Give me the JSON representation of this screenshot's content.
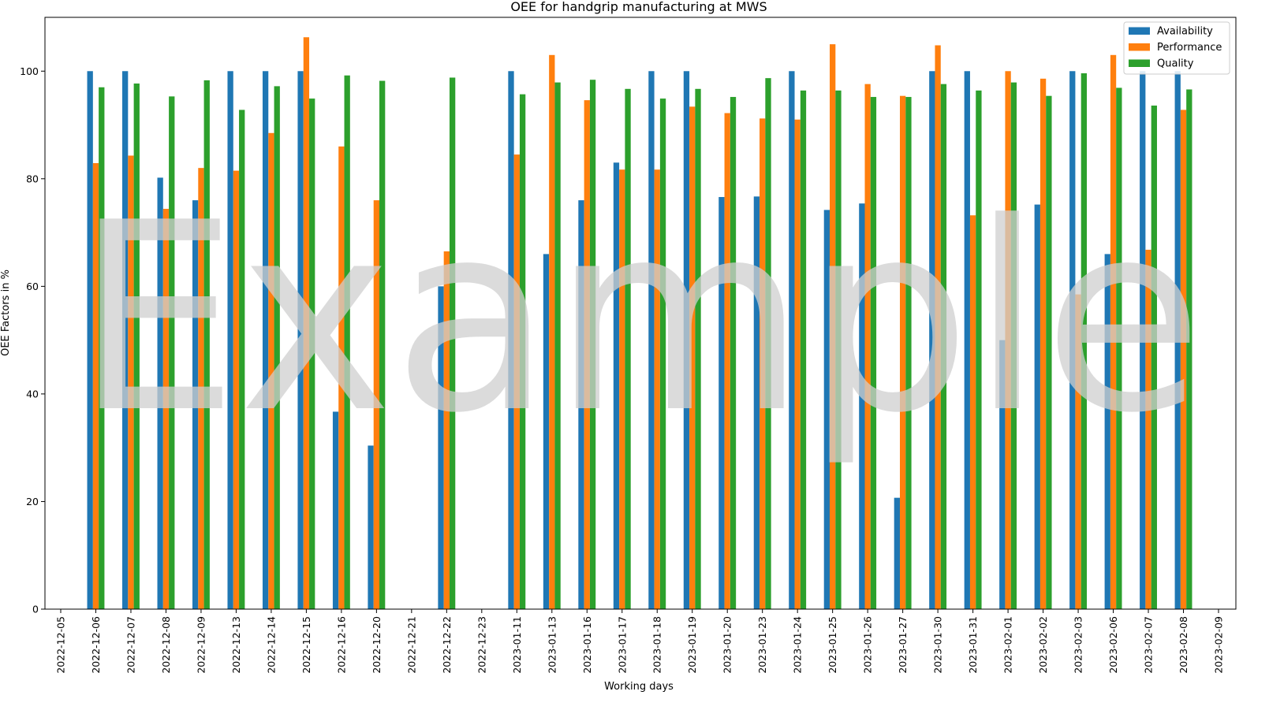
{
  "chart_data": {
    "type": "bar",
    "title": "OEE for handgrip manufacturing at MWS",
    "xlabel": "Working days",
    "ylabel": "OEE Factors in %",
    "ylim": [
      0,
      110
    ],
    "yticks": [
      0,
      20,
      40,
      60,
      80,
      100
    ],
    "legend_position": "top-right",
    "watermark": "Example",
    "categories": [
      "2022-12-05",
      "2022-12-06",
      "2022-12-07",
      "2022-12-08",
      "2022-12-09",
      "2022-12-13",
      "2022-12-14",
      "2022-12-15",
      "2022-12-16",
      "2022-12-20",
      "2022-12-21",
      "2022-12-22",
      "2022-12-23",
      "2023-01-11",
      "2023-01-13",
      "2023-01-16",
      "2023-01-17",
      "2023-01-18",
      "2023-01-19",
      "2023-01-20",
      "2023-01-23",
      "2023-01-24",
      "2023-01-25",
      "2023-01-26",
      "2023-01-27",
      "2023-01-30",
      "2023-01-31",
      "2023-02-01",
      "2023-02-02",
      "2023-02-03",
      "2023-02-06",
      "2023-02-07",
      "2023-02-08",
      "2023-02-09"
    ],
    "series": [
      {
        "name": "Availability",
        "color": "#1f77b4",
        "values": [
          0,
          100,
          100,
          80.2,
          76,
          100,
          100,
          100,
          36.7,
          30.4,
          0,
          60,
          0,
          100,
          66,
          76,
          83,
          100,
          100,
          76.6,
          76.7,
          100,
          74.2,
          75.4,
          20.7,
          100,
          100,
          50,
          75.2,
          100,
          66,
          100,
          100,
          0
        ]
      },
      {
        "name": "Performance",
        "color": "#ff7f0e",
        "values": [
          0,
          82.9,
          84.3,
          74.4,
          82,
          81.5,
          88.5,
          106.3,
          86,
          76,
          0,
          66.5,
          0,
          84.5,
          103,
          94.6,
          81.7,
          81.7,
          93.4,
          92.2,
          91.2,
          91,
          105,
          97.6,
          95.4,
          104.8,
          73.2,
          100,
          98.6,
          58.5,
          103,
          66.8,
          92.8,
          0
        ]
      },
      {
        "name": "Quality",
        "color": "#2ca02c",
        "values": [
          0,
          97,
          97.7,
          95.3,
          98.3,
          92.8,
          97.2,
          94.9,
          99.2,
          98.2,
          0,
          98.8,
          0,
          95.7,
          97.9,
          98.4,
          96.7,
          94.9,
          96.7,
          95.2,
          98.7,
          96.4,
          96.4,
          95.2,
          95.2,
          97.6,
          96.4,
          97.9,
          95.4,
          99.6,
          96.9,
          93.6,
          96.6,
          0
        ]
      }
    ]
  }
}
